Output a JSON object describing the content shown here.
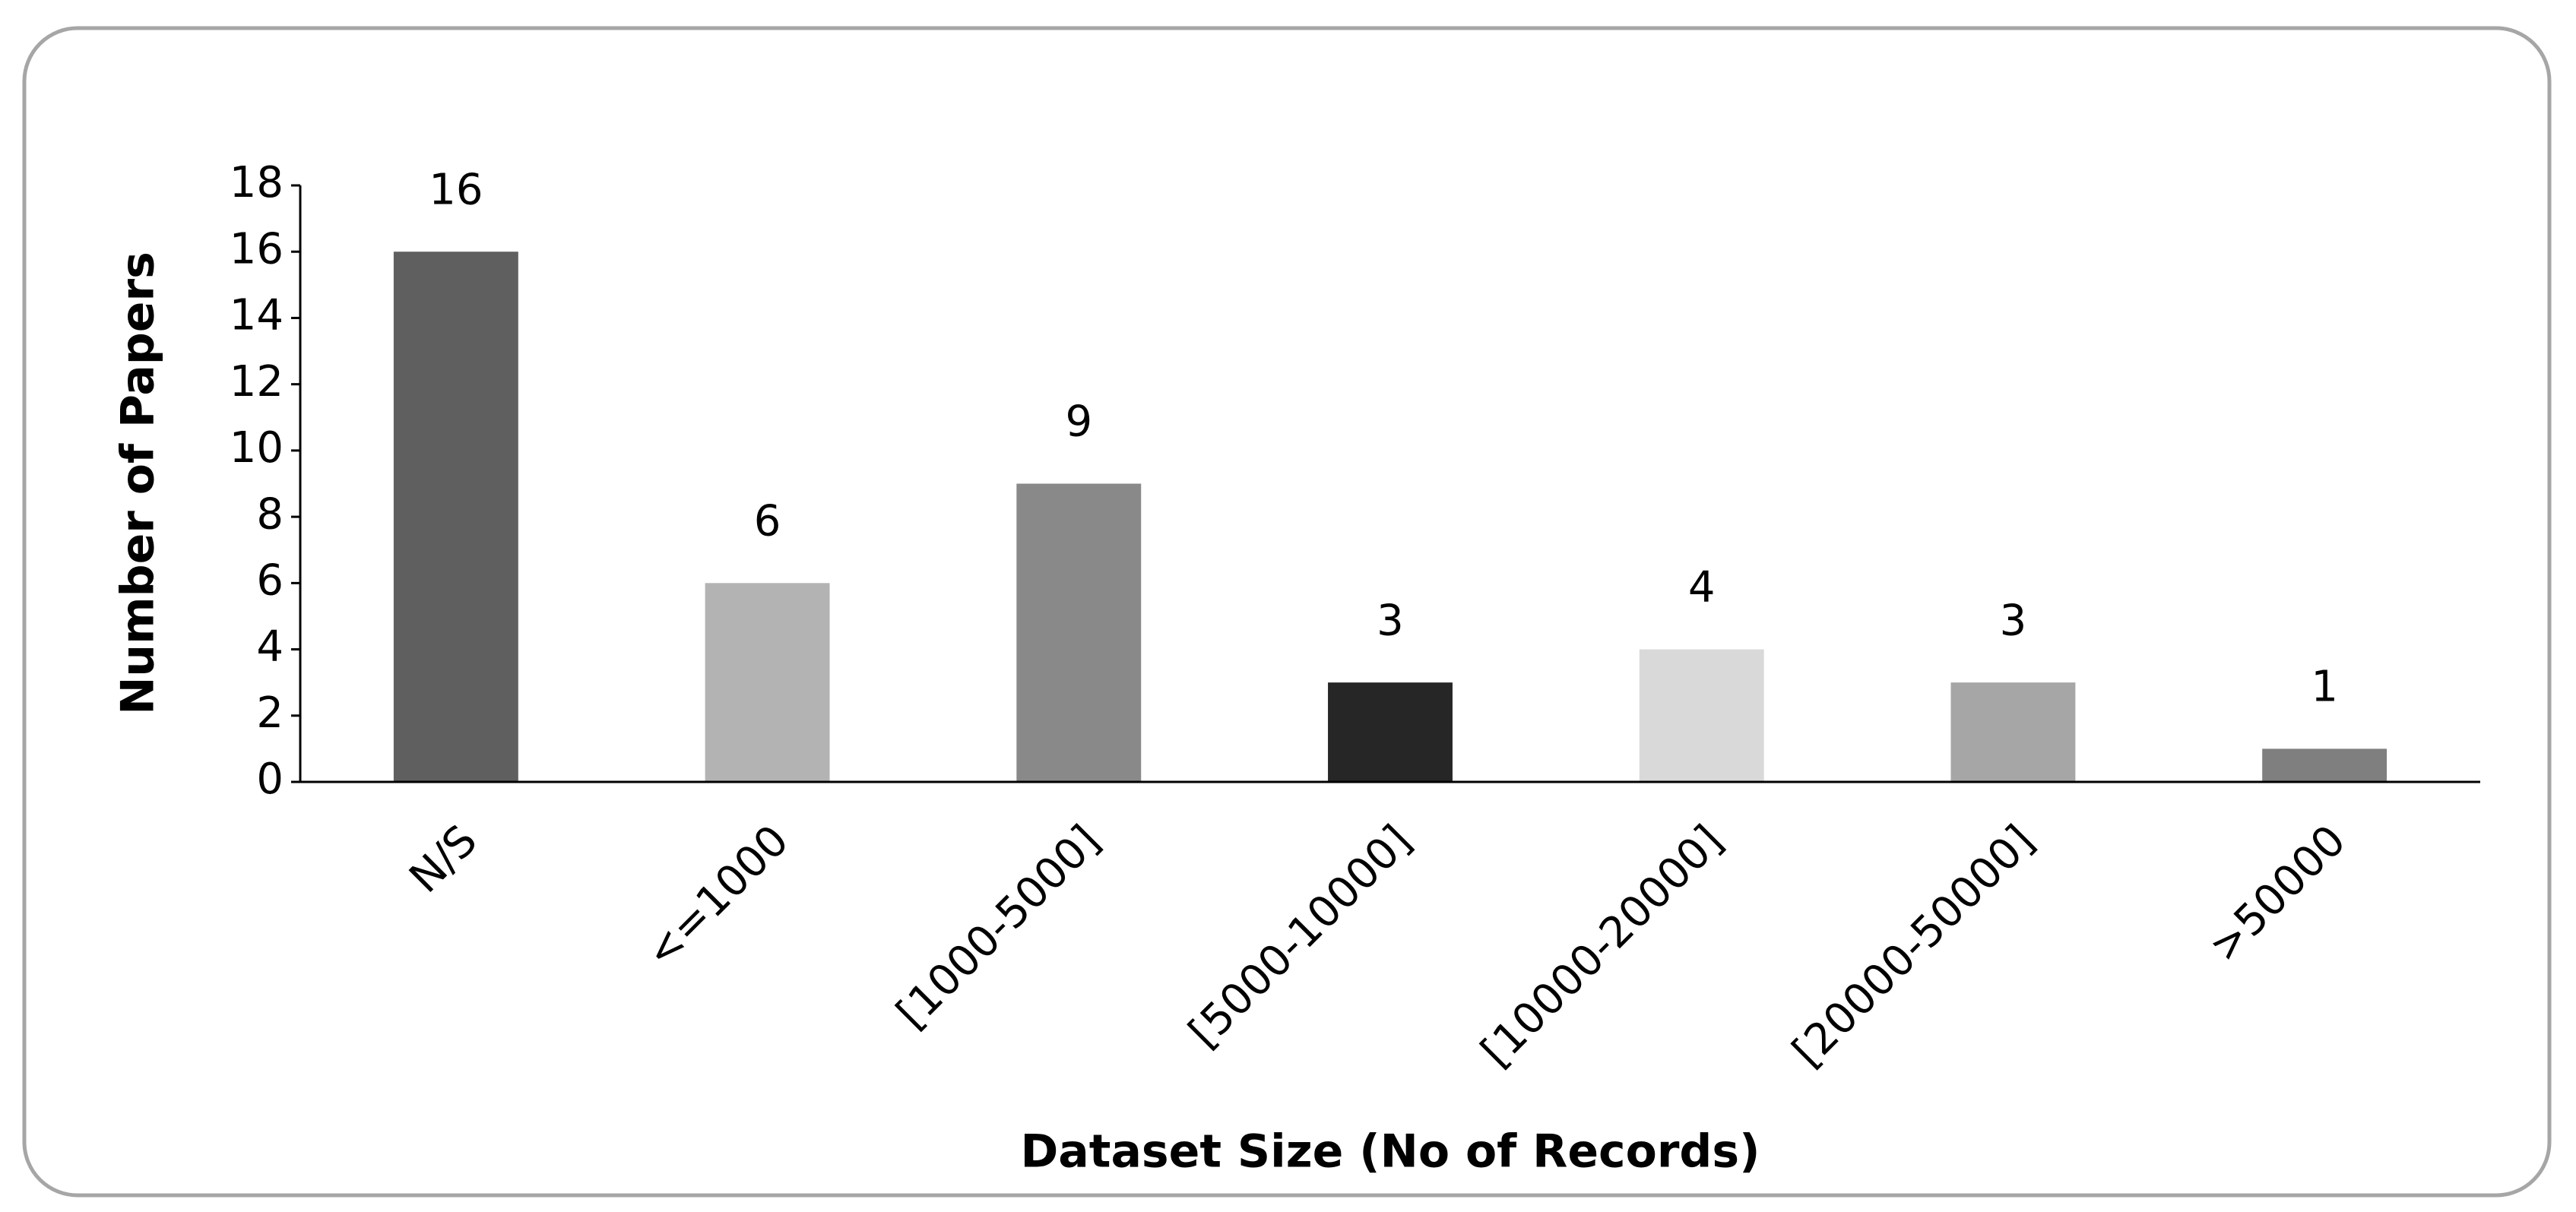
{
  "chart_data": {
    "type": "bar",
    "categories": [
      "N/S",
      "<=1000",
      "[1000-5000]",
      "[5000-10000]",
      "[10000-20000]",
      "[20000-50000]",
      ">50000"
    ],
    "values": [
      16,
      6,
      9,
      3,
      4,
      3,
      1
    ],
    "colors": [
      "#5f5f5f",
      "#b3b3b3",
      "#898989",
      "#262626",
      "#d9d9d9",
      "#a6a6a6",
      "#7f7f7f"
    ],
    "xlabel": "Dataset Size (No of Records)",
    "ylabel": "Number of Papers",
    "ylim": [
      0,
      18
    ],
    "yticks": [
      0,
      2,
      4,
      6,
      8,
      10,
      12,
      14,
      16,
      18
    ],
    "grid": false
  }
}
